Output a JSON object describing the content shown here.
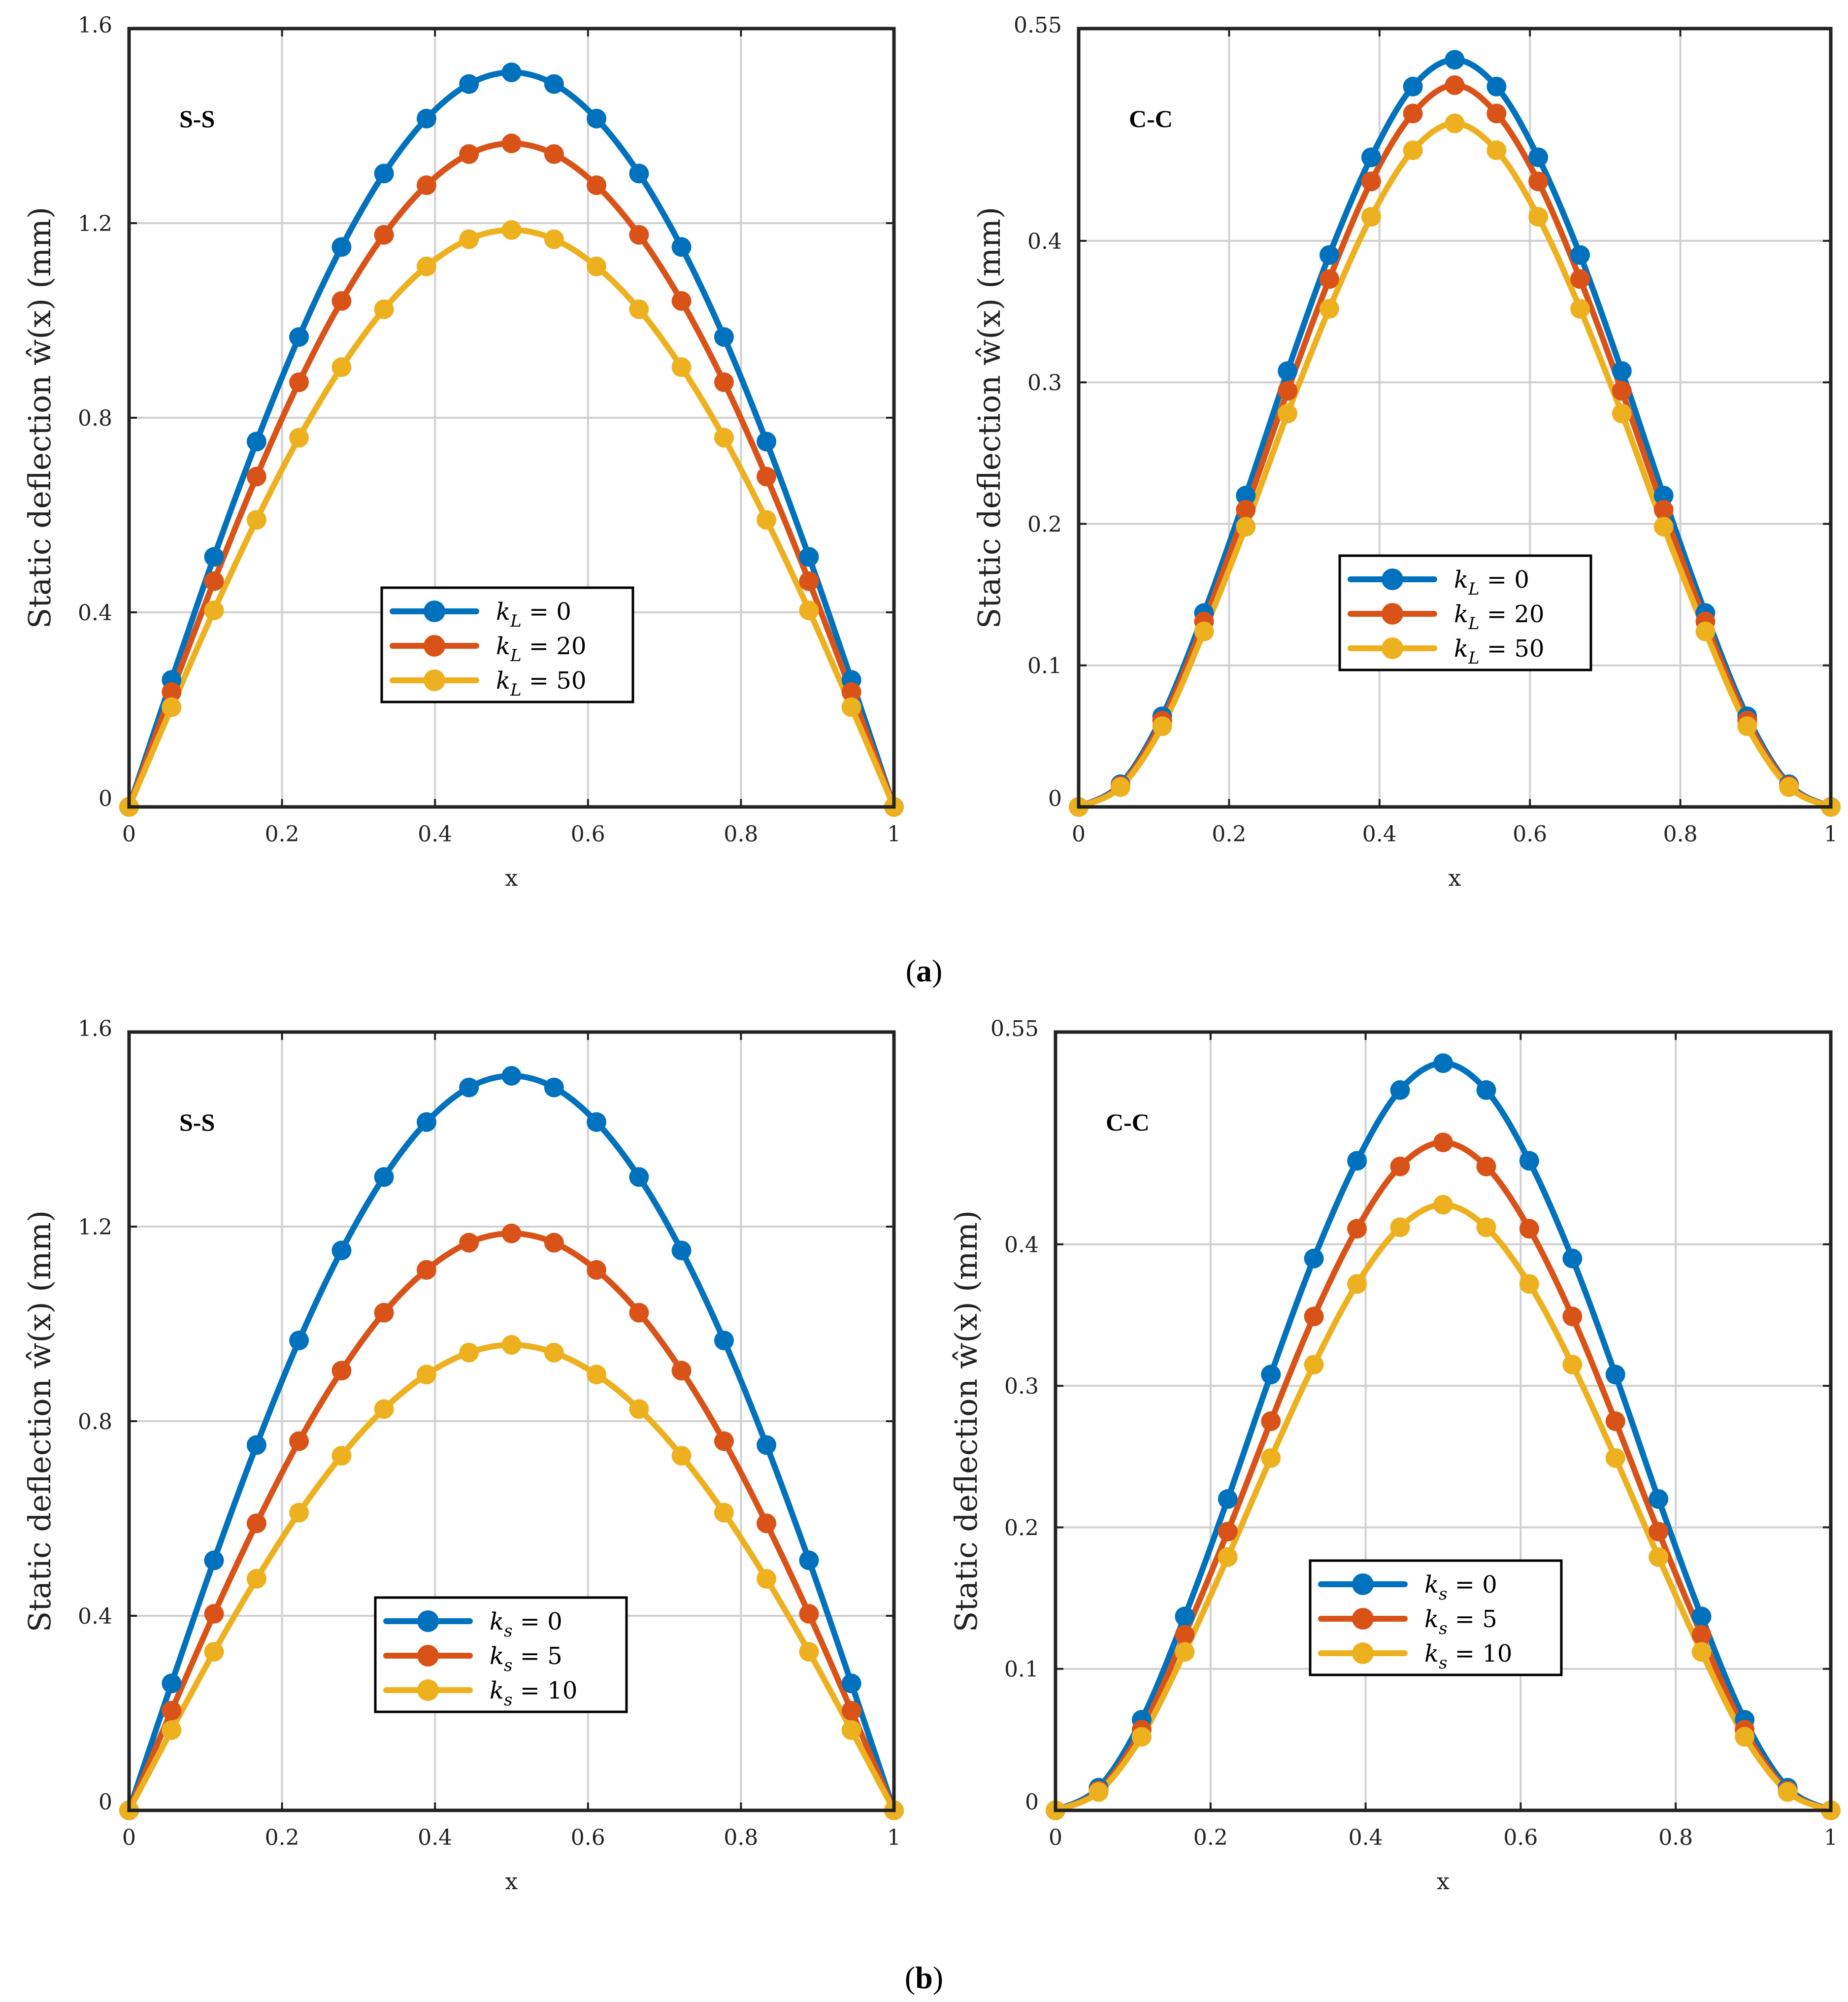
{
  "colors": {
    "series": [
      "#0072BD",
      "#D95319",
      "#EDB120"
    ],
    "grid": "#d0d0d0",
    "axis": "#222222"
  },
  "captions": [
    {
      "paren_open": "(",
      "letter": "a",
      "paren_close": ")"
    },
    {
      "paren_open": "(",
      "letter": "b",
      "paren_close": ")"
    }
  ],
  "chart_data": [
    {
      "type": "line",
      "annotation": "S-S",
      "xlabel": "x",
      "ylabel": "Static deflection ŵ(x) (mm)",
      "xlim": [
        0,
        1
      ],
      "ylim": [
        0,
        1.6
      ],
      "xticks": [
        0,
        0.2,
        0.4,
        0.6,
        0.8,
        1
      ],
      "xtick_labels": [
        "0",
        "0.2",
        "0.4",
        "0.6",
        "0.8",
        "1"
      ],
      "yticks": [
        0,
        0.4,
        0.8,
        1.2,
        1.6
      ],
      "ytick_labels": [
        "0",
        "0.4",
        "0.8",
        "1.2",
        "1.6"
      ],
      "grid": true,
      "legend_position": "center-bottom",
      "x": [
        0,
        0.0556,
        0.1111,
        0.1667,
        0.2222,
        0.2778,
        0.3333,
        0.3889,
        0.4444,
        0.5,
        0.5556,
        0.6111,
        0.6667,
        0.7222,
        0.7778,
        0.8333,
        0.8889,
        0.9444,
        1
      ],
      "series": [
        {
          "name": "k_L = 0",
          "legend_var": "k",
          "legend_sub": "L",
          "legend_val": " = 0",
          "values": [
            0,
            0.261,
            0.514,
            0.751,
            0.966,
            1.151,
            1.302,
            1.415,
            1.486,
            1.51,
            1.486,
            1.415,
            1.302,
            1.151,
            0.966,
            0.751,
            0.514,
            0.261,
            0
          ]
        },
        {
          "name": "k_L = 20",
          "legend_var": "k",
          "legend_sub": "L",
          "legend_val": " = 20",
          "values": [
            0,
            0.236,
            0.464,
            0.679,
            0.873,
            1.04,
            1.176,
            1.278,
            1.342,
            1.364,
            1.342,
            1.278,
            1.176,
            1.04,
            0.873,
            0.679,
            0.464,
            0.236,
            0
          ]
        },
        {
          "name": "k_L = 50",
          "legend_var": "k",
          "legend_sub": "L",
          "legend_val": " = 50",
          "values": [
            0,
            0.205,
            0.404,
            0.59,
            0.759,
            0.904,
            1.023,
            1.111,
            1.167,
            1.186,
            1.167,
            1.111,
            1.023,
            0.904,
            0.759,
            0.59,
            0.404,
            0.205,
            0
          ]
        }
      ]
    },
    {
      "type": "line",
      "annotation": "C-C",
      "xlabel": "x",
      "ylabel": "Static deflection ŵ(x) (mm)",
      "xlim": [
        0,
        1
      ],
      "ylim": [
        0,
        0.55
      ],
      "xticks": [
        0,
        0.2,
        0.4,
        0.6,
        0.8,
        1
      ],
      "xtick_labels": [
        "0",
        "0.2",
        "0.4",
        "0.6",
        "0.8",
        "1"
      ],
      "yticks": [
        0,
        0.1,
        0.2,
        0.3,
        0.4,
        0.55
      ],
      "ytick_labels": [
        "0",
        "0.1",
        "0.2",
        "0.3",
        "0.4",
        "0.55"
      ],
      "grid": true,
      "legend_position": "center",
      "x": [
        0,
        0.0556,
        0.1111,
        0.1667,
        0.2222,
        0.2778,
        0.3333,
        0.3889,
        0.4444,
        0.5,
        0.5556,
        0.6111,
        0.6667,
        0.7222,
        0.7778,
        0.8333,
        0.8889,
        0.9444,
        1
      ],
      "series": [
        {
          "name": "k_L = 0",
          "legend_var": "k",
          "legend_sub": "L",
          "legend_val": " = 0",
          "values": [
            0,
            0.016,
            0.064,
            0.137,
            0.22,
            0.308,
            0.39,
            0.459,
            0.509,
            0.528,
            0.509,
            0.459,
            0.39,
            0.308,
            0.22,
            0.137,
            0.064,
            0.016,
            0
          ]
        },
        {
          "name": "k_L = 20",
          "legend_var": "k",
          "legend_sub": "L",
          "legend_val": " = 20",
          "values": [
            0,
            0.015,
            0.061,
            0.131,
            0.21,
            0.294,
            0.373,
            0.442,
            0.49,
            0.51,
            0.49,
            0.442,
            0.373,
            0.294,
            0.21,
            0.131,
            0.061,
            0.015,
            0
          ]
        },
        {
          "name": "k_L = 50",
          "legend_var": "k",
          "legend_sub": "L",
          "legend_val": " = 50",
          "values": [
            0,
            0.014,
            0.057,
            0.124,
            0.198,
            0.278,
            0.352,
            0.417,
            0.464,
            0.483,
            0.464,
            0.417,
            0.352,
            0.278,
            0.198,
            0.124,
            0.057,
            0.014,
            0
          ]
        }
      ]
    },
    {
      "type": "line",
      "annotation": "S-S",
      "xlabel": "x",
      "ylabel": "Static deflection ŵ(x) (mm)",
      "xlim": [
        0,
        1
      ],
      "ylim": [
        0,
        1.6
      ],
      "xticks": [
        0,
        0.2,
        0.4,
        0.6,
        0.8,
        1
      ],
      "xtick_labels": [
        "0",
        "0.2",
        "0.4",
        "0.6",
        "0.8",
        "1"
      ],
      "yticks": [
        0,
        0.4,
        0.8,
        1.2,
        1.6
      ],
      "ytick_labels": [
        "0",
        "0.4",
        "0.8",
        "1.2",
        "1.6"
      ],
      "grid": true,
      "legend_position": "center-bottom",
      "x": [
        0,
        0.0556,
        0.1111,
        0.1667,
        0.2222,
        0.2778,
        0.3333,
        0.3889,
        0.4444,
        0.5,
        0.5556,
        0.6111,
        0.6667,
        0.7222,
        0.7778,
        0.8333,
        0.8889,
        0.9444,
        1
      ],
      "series": [
        {
          "name": "k_s = 0",
          "legend_var": "k",
          "legend_sub": "s",
          "legend_val": " = 0",
          "values": [
            0,
            0.261,
            0.514,
            0.751,
            0.966,
            1.151,
            1.302,
            1.415,
            1.486,
            1.51,
            1.486,
            1.415,
            1.302,
            1.151,
            0.966,
            0.751,
            0.514,
            0.261,
            0
          ]
        },
        {
          "name": "k_s = 5",
          "legend_var": "k",
          "legend_sub": "s",
          "legend_val": " = 5",
          "values": [
            0,
            0.205,
            0.404,
            0.59,
            0.759,
            0.904,
            1.023,
            1.111,
            1.167,
            1.186,
            1.167,
            1.111,
            1.023,
            0.904,
            0.759,
            0.59,
            0.404,
            0.205,
            0
          ]
        },
        {
          "name": "k_s = 10",
          "legend_var": "k",
          "legend_sub": "s",
          "legend_val": " = 10",
          "values": [
            0,
            0.165,
            0.326,
            0.476,
            0.612,
            0.729,
            0.825,
            0.896,
            0.941,
            0.957,
            0.941,
            0.896,
            0.825,
            0.729,
            0.612,
            0.476,
            0.326,
            0.165,
            0
          ]
        }
      ]
    },
    {
      "type": "line",
      "annotation": "C-C",
      "xlabel": "x",
      "ylabel": "Static deflection ŵ(x) (mm)",
      "xlim": [
        0,
        1
      ],
      "ylim": [
        0,
        0.55
      ],
      "xticks": [
        0,
        0.2,
        0.4,
        0.6,
        0.8,
        1
      ],
      "xtick_labels": [
        "0",
        "0.2",
        "0.4",
        "0.6",
        "0.8",
        "1"
      ],
      "yticks": [
        0,
        0.1,
        0.2,
        0.3,
        0.4,
        0.55
      ],
      "ytick_labels": [
        "0",
        "0.1",
        "0.2",
        "0.3",
        "0.4",
        "0.55"
      ],
      "grid": true,
      "legend_position": "center-bottom",
      "x": [
        0,
        0.0556,
        0.1111,
        0.1667,
        0.2222,
        0.2778,
        0.3333,
        0.3889,
        0.4444,
        0.5,
        0.5556,
        0.6111,
        0.6667,
        0.7222,
        0.7778,
        0.8333,
        0.8889,
        0.9444,
        1
      ],
      "series": [
        {
          "name": "k_s = 0",
          "legend_var": "k",
          "legend_sub": "s",
          "legend_val": " = 0",
          "values": [
            0,
            0.016,
            0.064,
            0.137,
            0.22,
            0.308,
            0.39,
            0.459,
            0.509,
            0.528,
            0.509,
            0.459,
            0.39,
            0.308,
            0.22,
            0.137,
            0.064,
            0.016,
            0
          ]
        },
        {
          "name": "k_s = 5",
          "legend_var": "k",
          "legend_sub": "s",
          "legend_val": " = 5",
          "values": [
            0,
            0.014,
            0.057,
            0.124,
            0.197,
            0.275,
            0.349,
            0.411,
            0.455,
            0.472,
            0.455,
            0.411,
            0.349,
            0.275,
            0.197,
            0.124,
            0.057,
            0.014,
            0
          ]
        },
        {
          "name": "k_s = 10",
          "legend_var": "k",
          "legend_sub": "s",
          "legend_val": " = 10",
          "values": [
            0,
            0.013,
            0.052,
            0.112,
            0.179,
            0.249,
            0.315,
            0.372,
            0.412,
            0.428,
            0.412,
            0.372,
            0.315,
            0.249,
            0.179,
            0.112,
            0.052,
            0.013,
            0
          ]
        }
      ]
    }
  ]
}
